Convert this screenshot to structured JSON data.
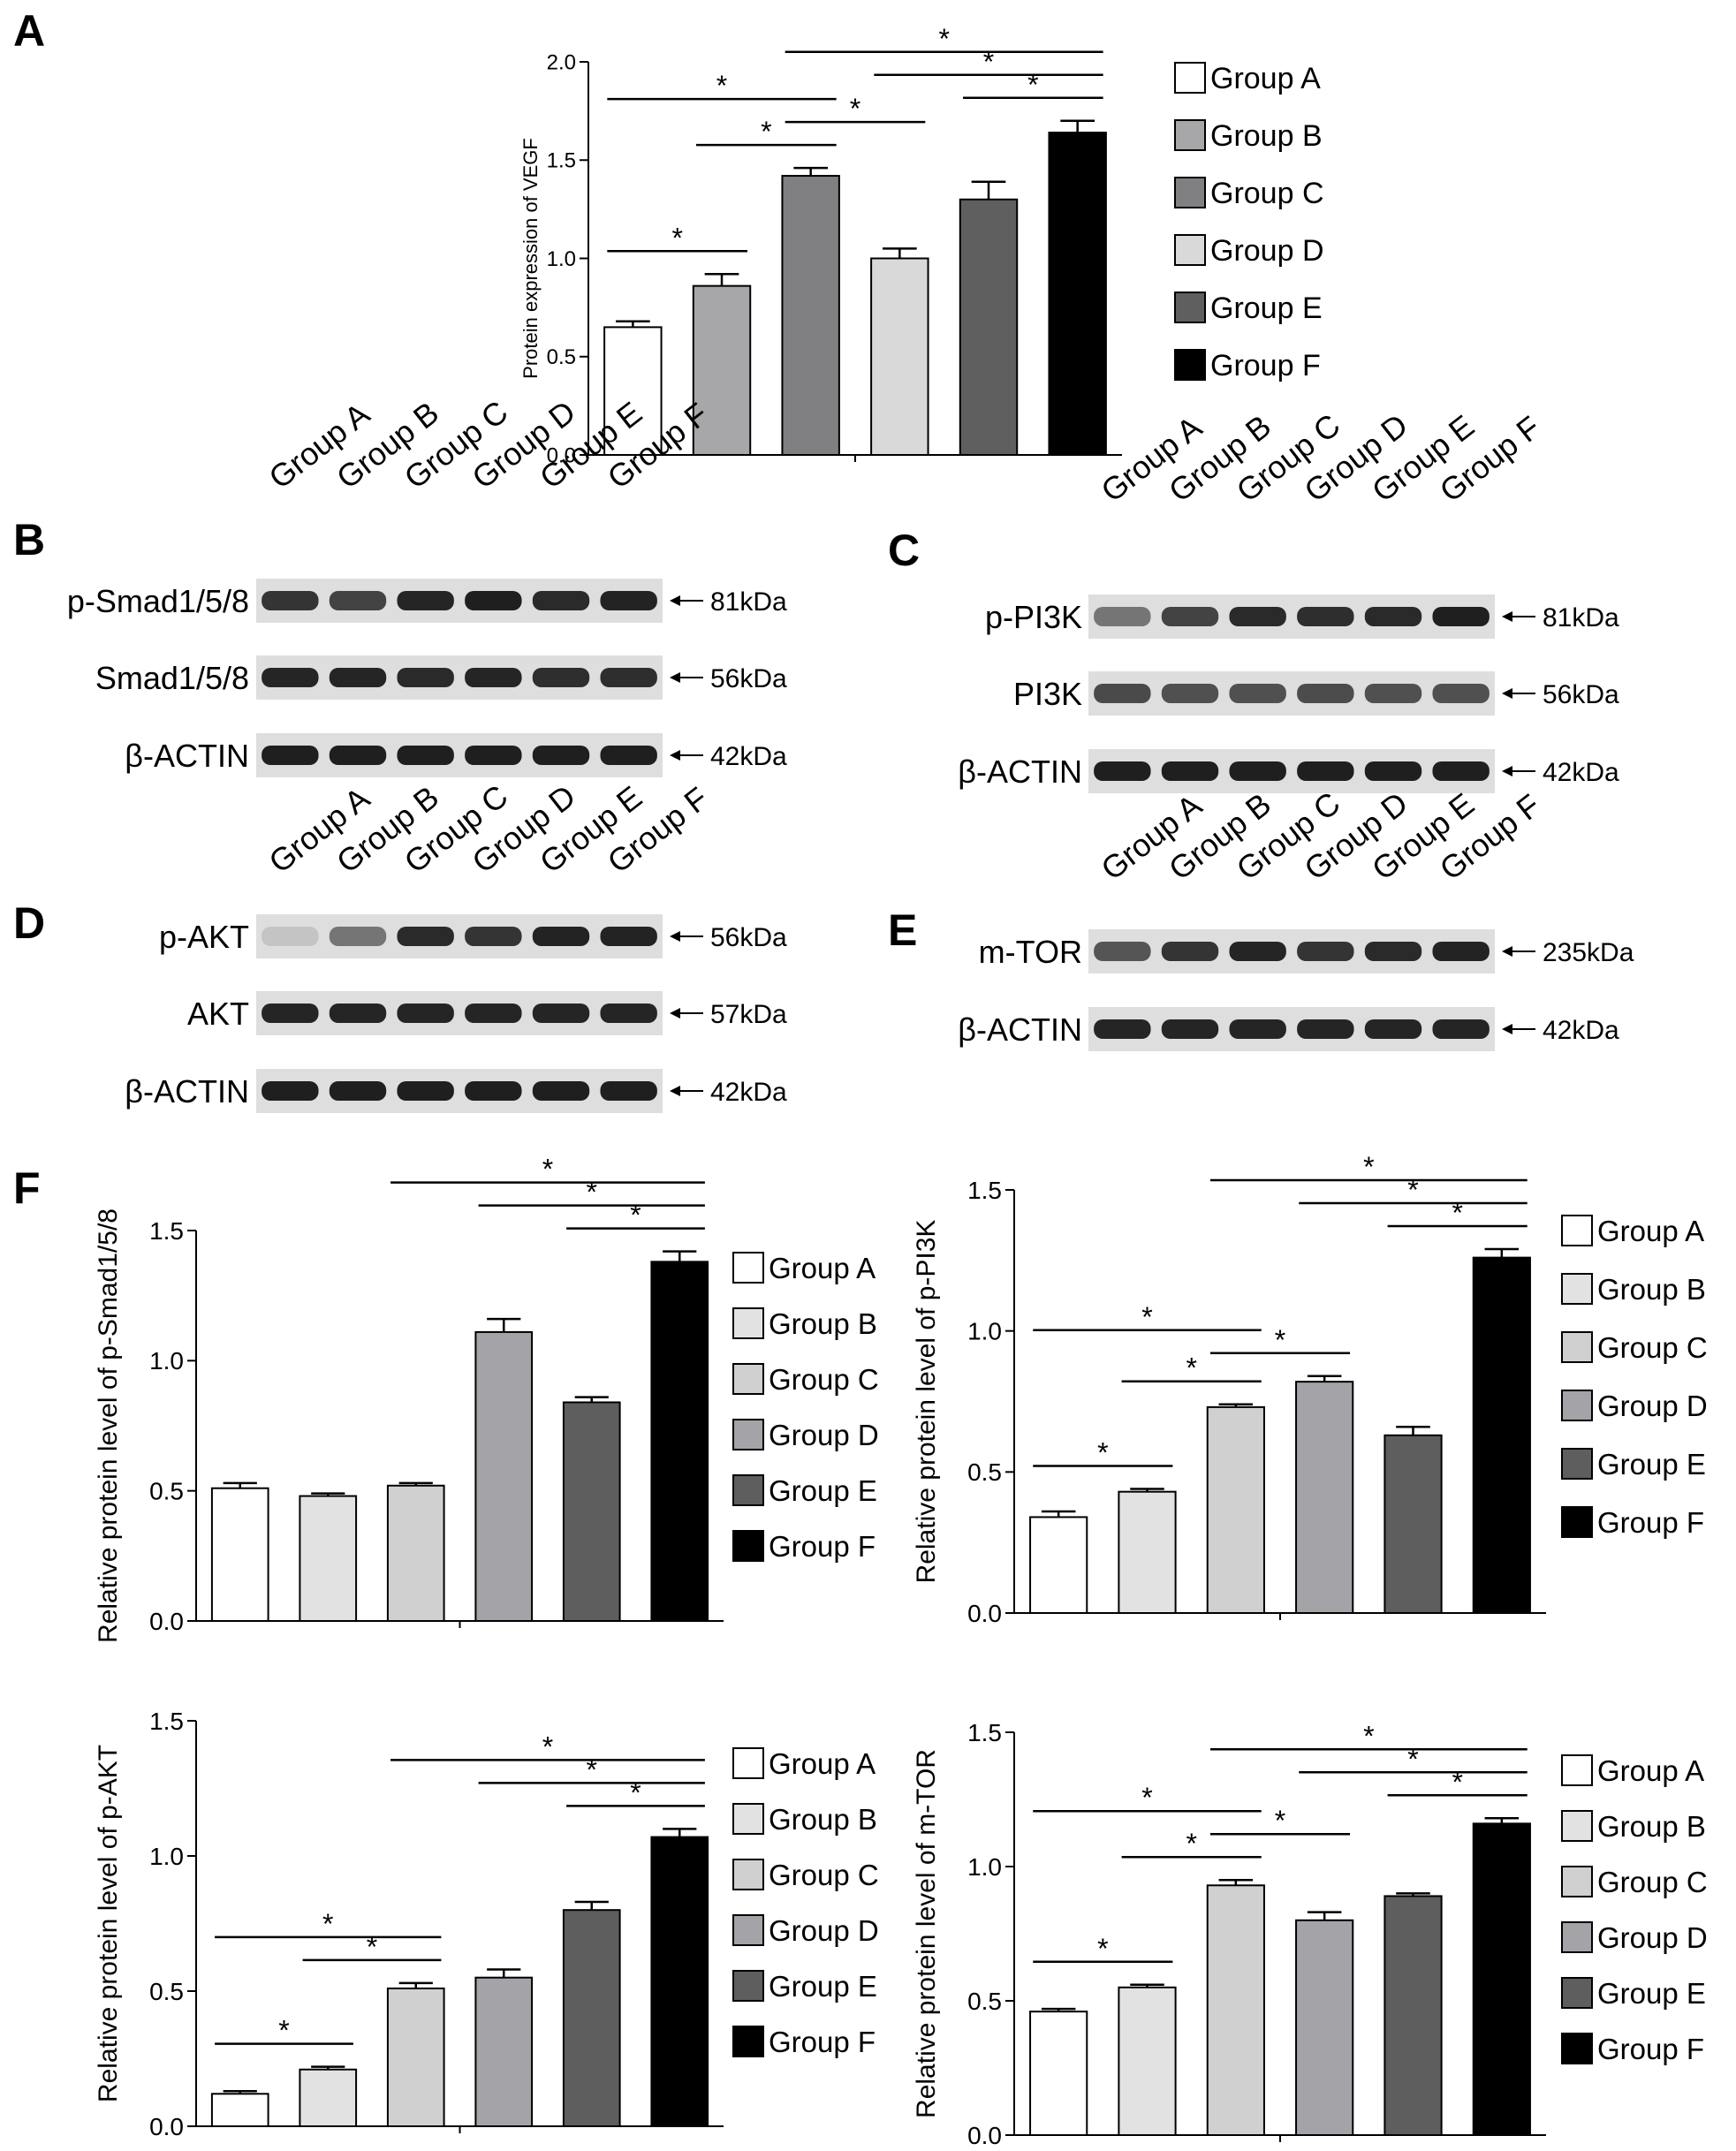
{
  "panel_letters": [
    "A",
    "B",
    "C",
    "D",
    "E",
    "F"
  ],
  "legend_labels": [
    "Group A",
    "Group B",
    "Group C",
    "Group D",
    "Group E",
    "Group F"
  ],
  "sig_symbol": "*",
  "chart_data": [
    {
      "id": "A",
      "type": "bar",
      "categories": [
        "Group A",
        "Group B",
        "Group C",
        "Group D",
        "Group E",
        "Group F"
      ],
      "values": [
        0.65,
        0.86,
        1.42,
        1.0,
        1.3,
        1.64
      ],
      "errors": [
        0.03,
        0.06,
        0.04,
        0.05,
        0.09,
        0.06
      ],
      "colors": [
        "#ffffff",
        "#a7a7a9",
        "#808082",
        "#d9d9d9",
        "#5f5f5f",
        "#000000"
      ],
      "ylabel": "Protein expression of VEGF",
      "ylim": [
        0,
        2.0
      ],
      "yticks": [
        "0.0",
        "0.5",
        "1.0",
        "1.5",
        "2.0"
      ],
      "significance": [
        [
          0,
          2
        ],
        [
          0,
          1
        ],
        [
          1,
          2
        ],
        [
          2,
          3
        ],
        [
          2,
          5
        ],
        [
          3,
          5
        ],
        [
          4,
          5
        ]
      ],
      "legend": "right"
    },
    {
      "id": "F1",
      "type": "bar",
      "categories": [
        "Group A",
        "Group B",
        "Group C",
        "Group D",
        "Group E",
        "Group F"
      ],
      "values": [
        0.51,
        0.48,
        0.52,
        1.11,
        0.84,
        1.38
      ],
      "errors": [
        0.02,
        0.01,
        0.01,
        0.05,
        0.02,
        0.04
      ],
      "colors": [
        "#ffffff",
        "#e2e2e2",
        "#d0d0d0",
        "#a4a4a8",
        "#5e5e5e",
        "#000000"
      ],
      "ylabel": "Relative protein level of p-Smad1/5/8",
      "ylim": [
        0,
        1.5
      ],
      "yticks": [
        "0.0",
        "0.5",
        "1.0",
        "1.5"
      ],
      "significance": [
        [
          2,
          5
        ],
        [
          3,
          5
        ],
        [
          4,
          5
        ]
      ],
      "legend": "right"
    },
    {
      "id": "F2",
      "type": "bar",
      "categories": [
        "Group A",
        "Group B",
        "Group C",
        "Group D",
        "Group E",
        "Group F"
      ],
      "values": [
        0.34,
        0.43,
        0.73,
        0.82,
        0.63,
        1.26
      ],
      "errors": [
        0.02,
        0.01,
        0.01,
        0.02,
        0.03,
        0.03
      ],
      "colors": [
        "#ffffff",
        "#e2e2e2",
        "#d0d0d0",
        "#a4a4a8",
        "#5e5e5e",
        "#000000"
      ],
      "ylabel": "Relative protein level of p-PI3K",
      "ylim": [
        0,
        1.5
      ],
      "yticks": [
        "0.0",
        "0.5",
        "1.0",
        "1.5"
      ],
      "significance": [
        [
          0,
          2
        ],
        [
          0,
          1
        ],
        [
          1,
          2
        ],
        [
          2,
          3
        ],
        [
          2,
          5
        ],
        [
          3,
          5
        ],
        [
          4,
          5
        ]
      ],
      "legend": "right"
    },
    {
      "id": "F3",
      "type": "bar",
      "categories": [
        "Group A",
        "Group B",
        "Group C",
        "Group D",
        "Group E",
        "Group F"
      ],
      "values": [
        0.12,
        0.21,
        0.51,
        0.55,
        0.8,
        1.07
      ],
      "errors": [
        0.01,
        0.01,
        0.02,
        0.03,
        0.03,
        0.03
      ],
      "colors": [
        "#ffffff",
        "#e2e2e2",
        "#d0d0d0",
        "#a4a4a8",
        "#5e5e5e",
        "#000000"
      ],
      "ylabel": "Relative protein level of p-AKT",
      "ylim": [
        0,
        1.5
      ],
      "yticks": [
        "0.0",
        "0.5",
        "1.0",
        "1.5"
      ],
      "significance": [
        [
          0,
          2
        ],
        [
          0,
          1
        ],
        [
          1,
          2
        ],
        [
          2,
          5
        ],
        [
          3,
          5
        ],
        [
          4,
          5
        ]
      ],
      "legend": "right"
    },
    {
      "id": "F4",
      "type": "bar",
      "categories": [
        "Group A",
        "Group B",
        "Group C",
        "Group D",
        "Group E",
        "Group F"
      ],
      "values": [
        0.46,
        0.55,
        0.93,
        0.8,
        0.89,
        1.16
      ],
      "errors": [
        0.01,
        0.01,
        0.02,
        0.03,
        0.01,
        0.02
      ],
      "colors": [
        "#ffffff",
        "#e2e2e2",
        "#d0d0d0",
        "#a4a4a8",
        "#5e5e5e",
        "#000000"
      ],
      "ylabel": "Relative protein level of m-TOR",
      "ylim": [
        0,
        1.5
      ],
      "yticks": [
        "0.0",
        "0.5",
        "1.0",
        "1.5"
      ],
      "significance": [
        [
          0,
          2
        ],
        [
          0,
          1
        ],
        [
          1,
          2
        ],
        [
          2,
          3
        ],
        [
          2,
          5
        ],
        [
          3,
          5
        ],
        [
          4,
          5
        ]
      ],
      "legend": "right"
    }
  ],
  "blots": [
    {
      "id": "B",
      "lane_labels": [
        "Group A",
        "Group B",
        "Group C",
        "Group D",
        "Group E",
        "Group F"
      ],
      "rows": [
        {
          "protein": "p-Smad1/5/8",
          "size": "81kDa",
          "intensity": [
            0.85,
            0.78,
            0.92,
            0.95,
            0.9,
            0.93
          ]
        },
        {
          "protein": "Smad1/5/8",
          "size": "56kDa",
          "intensity": [
            0.92,
            0.92,
            0.9,
            0.92,
            0.88,
            0.88
          ]
        },
        {
          "protein": "β-ACTIN",
          "size": "42kDa",
          "intensity": [
            0.95,
            0.95,
            0.95,
            0.95,
            0.95,
            0.95
          ]
        }
      ]
    },
    {
      "id": "C",
      "lane_labels": [
        "Group A",
        "Group B",
        "Group C",
        "Group D",
        "Group E",
        "Group F"
      ],
      "rows": [
        {
          "protein": "p-PI3K",
          "size": "81kDa",
          "intensity": [
            0.55,
            0.78,
            0.9,
            0.88,
            0.9,
            0.95
          ]
        },
        {
          "protein": "PI3K",
          "size": "56kDa",
          "intensity": [
            0.75,
            0.72,
            0.72,
            0.74,
            0.72,
            0.72
          ]
        },
        {
          "protein": "β-ACTIN",
          "size": "42kDa",
          "intensity": [
            0.95,
            0.95,
            0.95,
            0.95,
            0.95,
            0.95
          ]
        }
      ]
    },
    {
      "id": "D",
      "lane_labels": [
        "Group A",
        "Group B",
        "Group C",
        "Group D",
        "Group E",
        "Group F"
      ],
      "rows": [
        {
          "protein": "p-AKT",
          "size": "56kDa",
          "intensity": [
            0.18,
            0.55,
            0.9,
            0.85,
            0.93,
            0.93
          ]
        },
        {
          "protein": "AKT",
          "size": "57kDa",
          "intensity": [
            0.92,
            0.92,
            0.92,
            0.92,
            0.92,
            0.92
          ]
        },
        {
          "protein": "β-ACTIN",
          "size": "42kDa",
          "intensity": [
            0.95,
            0.95,
            0.95,
            0.95,
            0.95,
            0.95
          ]
        }
      ]
    },
    {
      "id": "E",
      "lane_labels": [
        "Group A",
        "Group B",
        "Group C",
        "Group D",
        "Group E",
        "Group F"
      ],
      "rows": [
        {
          "protein": "m-TOR",
          "size": "235kDa",
          "intensity": [
            0.7,
            0.85,
            0.92,
            0.85,
            0.9,
            0.93
          ]
        },
        {
          "protein": "β-ACTIN",
          "size": "42kDa",
          "intensity": [
            0.92,
            0.92,
            0.92,
            0.92,
            0.92,
            0.92
          ]
        }
      ]
    }
  ]
}
